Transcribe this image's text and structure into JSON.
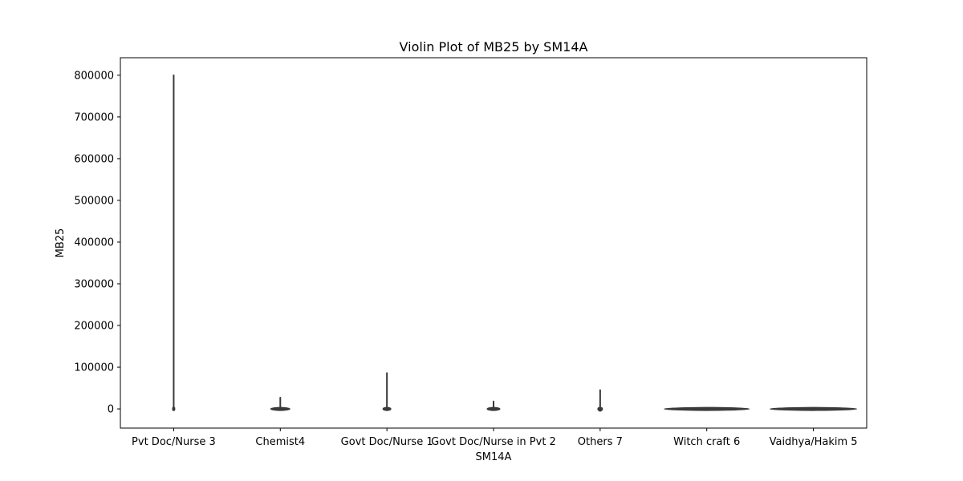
{
  "chart_data": {
    "type": "violin",
    "title": "Violin Plot of MB25 by SM14A",
    "xlabel": "SM14A",
    "ylabel": "MB25",
    "categories": [
      "Pvt Doc/Nurse 3",
      "Chemist4",
      "Govt Doc/Nurse 1",
      "Govt Doc/Nurse in Pvt 2",
      "Others 7",
      "Witch craft 6",
      "Vaidhya/Hakim 5"
    ],
    "yticks": [
      0,
      100000,
      200000,
      300000,
      400000,
      500000,
      600000,
      700000,
      800000
    ],
    "ytick_labels": [
      "0",
      "100000",
      "200000",
      "300000",
      "400000",
      "500000",
      "600000",
      "700000",
      "800000"
    ],
    "ylim": [
      -46000,
      842000
    ],
    "series": [
      {
        "category": "Pvt Doc/Nurse 3",
        "min": -2000,
        "max": 800000
      },
      {
        "category": "Chemist4",
        "min": -800,
        "max": 27000
      },
      {
        "category": "Govt Doc/Nurse 1",
        "min": -2000,
        "max": 86000
      },
      {
        "category": "Govt Doc/Nurse in Pvt 2",
        "min": -800,
        "max": 18000
      },
      {
        "category": "Others 7",
        "min": -5000,
        "max": 45000
      },
      {
        "category": "Witch craft 6",
        "min": -200,
        "max": 2000
      },
      {
        "category": "Vaidhya/Hakim 5",
        "min": -100,
        "max": 200
      }
    ],
    "grid": false,
    "colors": {
      "violin": "#3a3a3a",
      "axis": "#000000"
    }
  }
}
